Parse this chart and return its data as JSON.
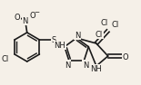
{
  "bg_color": "#f5f0e8",
  "line_color": "#1a1a1a",
  "lw": 1.2,
  "font_size": 6.0,
  "small_font": 5.2
}
